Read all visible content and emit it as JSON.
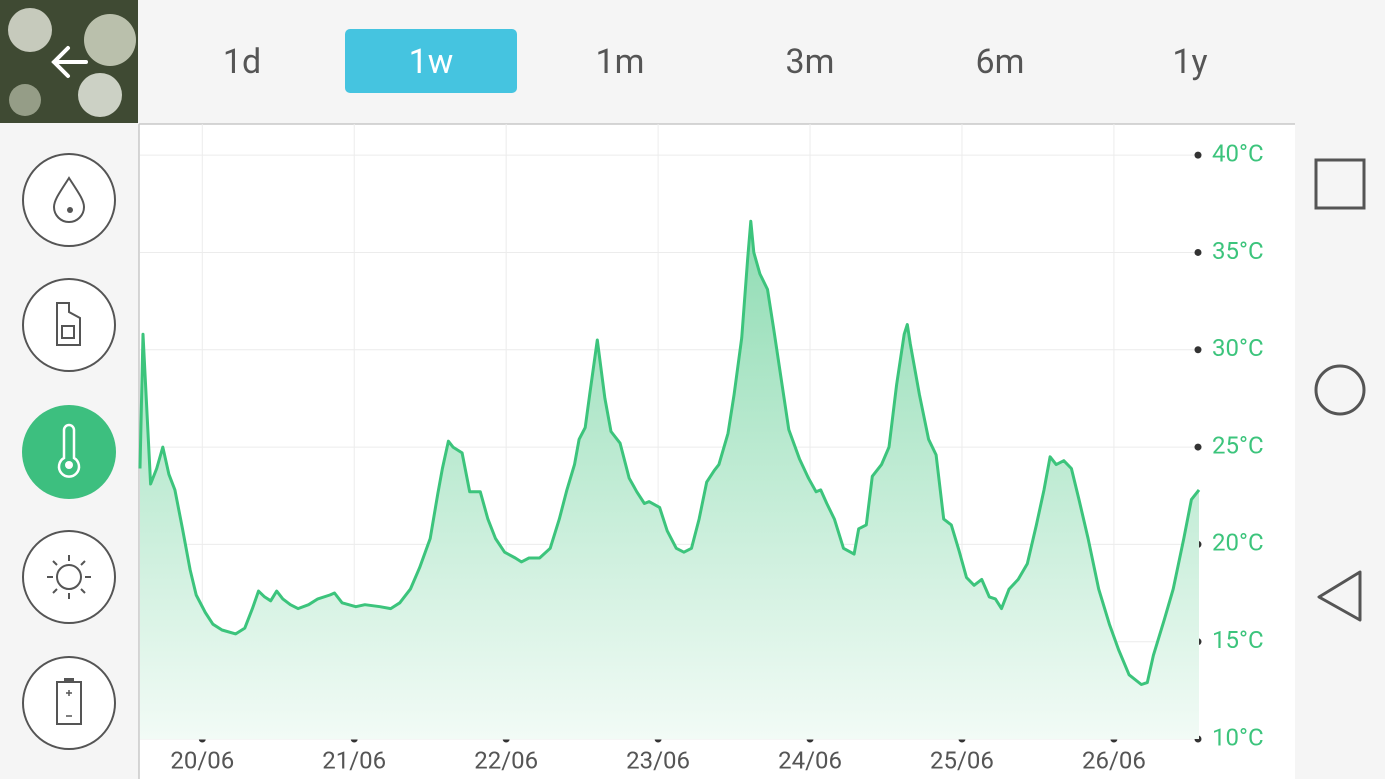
{
  "tabs": [
    {
      "label": "1d",
      "selected": false
    },
    {
      "label": "1w",
      "selected": true
    },
    {
      "label": "1m",
      "selected": false
    },
    {
      "label": "3m",
      "selected": false
    },
    {
      "label": "6m",
      "selected": false
    },
    {
      "label": "1y",
      "selected": false
    }
  ],
  "chart_data": {
    "type": "area",
    "color": "#3cc47c",
    "grid": true,
    "xlim": [
      19.59,
      26.56
    ],
    "ylim": [
      10,
      41.6
    ],
    "xticks": [
      {
        "value": 20,
        "label": "20/06"
      },
      {
        "value": 21,
        "label": "21/06"
      },
      {
        "value": 22,
        "label": "22/06"
      },
      {
        "value": 23,
        "label": "23/06"
      },
      {
        "value": 24,
        "label": "24/06"
      },
      {
        "value": 25,
        "label": "25/06"
      },
      {
        "value": 26,
        "label": "26/06"
      }
    ],
    "yticks": [
      {
        "value": 10,
        "label": "10°C"
      },
      {
        "value": 15,
        "label": "15°C"
      },
      {
        "value": 20,
        "label": "20°C"
      },
      {
        "value": 25,
        "label": "25°C"
      },
      {
        "value": 30,
        "label": "30°C"
      },
      {
        "value": 35,
        "label": "35°C"
      },
      {
        "value": 40,
        "label": "40°C"
      }
    ],
    "x": [
      19.59,
      19.61,
      19.66,
      19.7,
      19.74,
      19.78,
      19.82,
      19.87,
      19.92,
      19.96,
      20.02,
      20.07,
      20.13,
      20.22,
      20.28,
      20.33,
      20.37,
      20.41,
      20.45,
      20.49,
      20.53,
      20.58,
      20.63,
      20.7,
      20.76,
      20.84,
      20.87,
      20.92,
      21.01,
      21.07,
      21.17,
      21.24,
      21.3,
      21.37,
      21.43,
      21.5,
      21.55,
      21.58,
      21.62,
      21.65,
      21.71,
      21.76,
      21.83,
      21.88,
      21.93,
      21.99,
      22.06,
      22.1,
      22.15,
      22.22,
      22.29,
      22.35,
      22.4,
      22.45,
      22.48,
      22.52,
      22.55,
      22.6,
      22.65,
      22.69,
      22.75,
      22.81,
      22.86,
      22.91,
      22.94,
      23.01,
      23.06,
      23.12,
      23.17,
      23.22,
      23.27,
      23.32,
      23.37,
      23.4,
      23.46,
      23.5,
      23.55,
      23.59,
      23.61,
      23.63,
      23.67,
      23.72,
      23.76,
      23.81,
      23.86,
      23.93,
      23.99,
      24.04,
      24.07,
      24.11,
      24.16,
      24.22,
      24.29,
      24.32,
      24.37,
      24.41,
      24.47,
      24.52,
      24.57,
      24.62,
      24.64,
      24.66,
      24.72,
      24.78,
      24.83,
      24.88,
      24.93,
      24.98,
      25.03,
      25.08,
      25.13,
      25.18,
      25.22,
      25.26,
      25.31,
      25.37,
      25.43,
      25.49,
      25.54,
      25.58,
      25.62,
      25.67,
      25.72,
      25.77,
      25.83,
      25.9,
      25.97,
      26.03,
      26.1,
      26.18,
      26.22,
      26.26,
      26.33,
      26.39,
      26.46,
      26.51,
      26.56
    ],
    "values": [
      23.9,
      30.8,
      23.1,
      23.9,
      25.0,
      23.6,
      22.8,
      20.8,
      18.7,
      17.4,
      16.5,
      15.9,
      15.6,
      15.4,
      15.7,
      16.7,
      17.6,
      17.3,
      17.1,
      17.6,
      17.2,
      16.9,
      16.7,
      16.9,
      17.2,
      17.4,
      17.5,
      17.0,
      16.8,
      16.9,
      16.8,
      16.7,
      17.0,
      17.7,
      18.8,
      20.3,
      22.6,
      23.9,
      25.3,
      25.0,
      24.7,
      22.7,
      22.7,
      21.3,
      20.3,
      19.6,
      19.3,
      19.1,
      19.3,
      19.3,
      19.8,
      21.3,
      22.8,
      24.1,
      25.4,
      26.0,
      27.7,
      30.5,
      27.5,
      25.8,
      25.2,
      23.4,
      22.7,
      22.1,
      22.2,
      21.9,
      20.7,
      19.8,
      19.6,
      19.8,
      21.3,
      23.2,
      23.8,
      24.1,
      25.7,
      27.7,
      30.6,
      34.7,
      36.6,
      35.0,
      33.9,
      33.1,
      31.1,
      28.5,
      25.9,
      24.4,
      23.4,
      22.7,
      22.8,
      22.1,
      21.3,
      19.8,
      19.5,
      20.8,
      21.0,
      23.5,
      24.1,
      25.0,
      28.2,
      30.8,
      31.3,
      30.3,
      27.7,
      25.4,
      24.6,
      21.3,
      21.0,
      19.7,
      18.3,
      17.9,
      18.2,
      17.3,
      17.2,
      16.7,
      17.7,
      18.2,
      19.0,
      21.0,
      22.8,
      24.5,
      24.1,
      24.3,
      23.9,
      22.3,
      20.3,
      17.7,
      15.9,
      14.6,
      13.3,
      12.8,
      12.9,
      14.3,
      16.1,
      17.7,
      20.3,
      22.3,
      22.8
    ]
  }
}
